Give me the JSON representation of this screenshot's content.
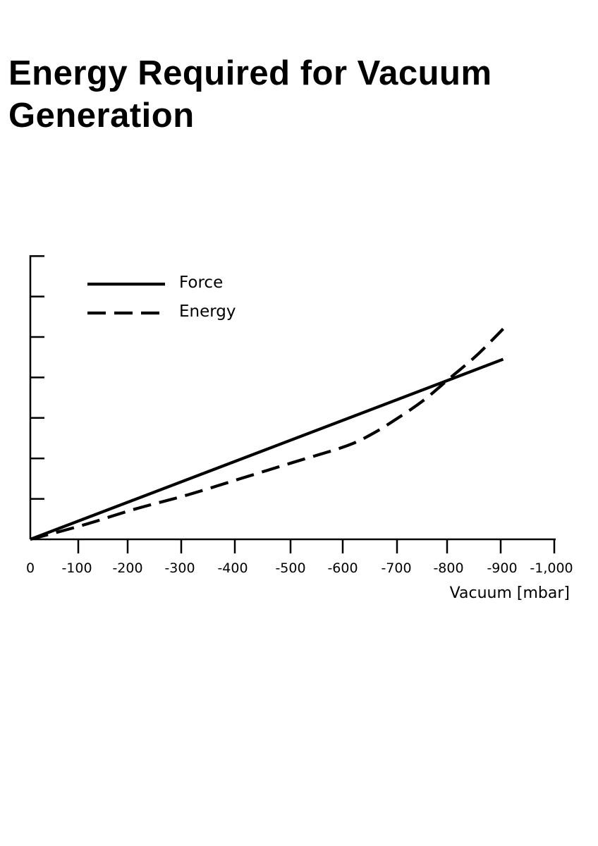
{
  "page": {
    "title": "Energy Required for Vacuum Generation"
  },
  "chart_data": {
    "type": "line",
    "title": "",
    "xlabel": "Vacuum [mbar]",
    "ylabel": "",
    "xlim": [
      0,
      -1000
    ],
    "x_ticks": [
      "0",
      "-100",
      "-200",
      "-300",
      "-400",
      "-500",
      "-600",
      "-700",
      "-800",
      "-900",
      "-1,000"
    ],
    "y_ticks_labeled": false,
    "legend_position": "top-left",
    "series": [
      {
        "name": "Force",
        "style": "solid",
        "color": "#000000",
        "x": [
          0,
          -900
        ],
        "y": [
          0,
          4.45
        ]
      },
      {
        "name": "Energy",
        "style": "dashed",
        "color": "#000000",
        "x": [
          0,
          -100,
          -200,
          -300,
          -400,
          -500,
          -600,
          -650,
          -700,
          -750,
          -800,
          -850,
          -900
        ],
        "y": [
          0,
          0.35,
          0.75,
          1.1,
          1.5,
          1.9,
          2.3,
          2.6,
          3.0,
          3.45,
          4.0,
          4.55,
          5.2
        ]
      }
    ]
  }
}
